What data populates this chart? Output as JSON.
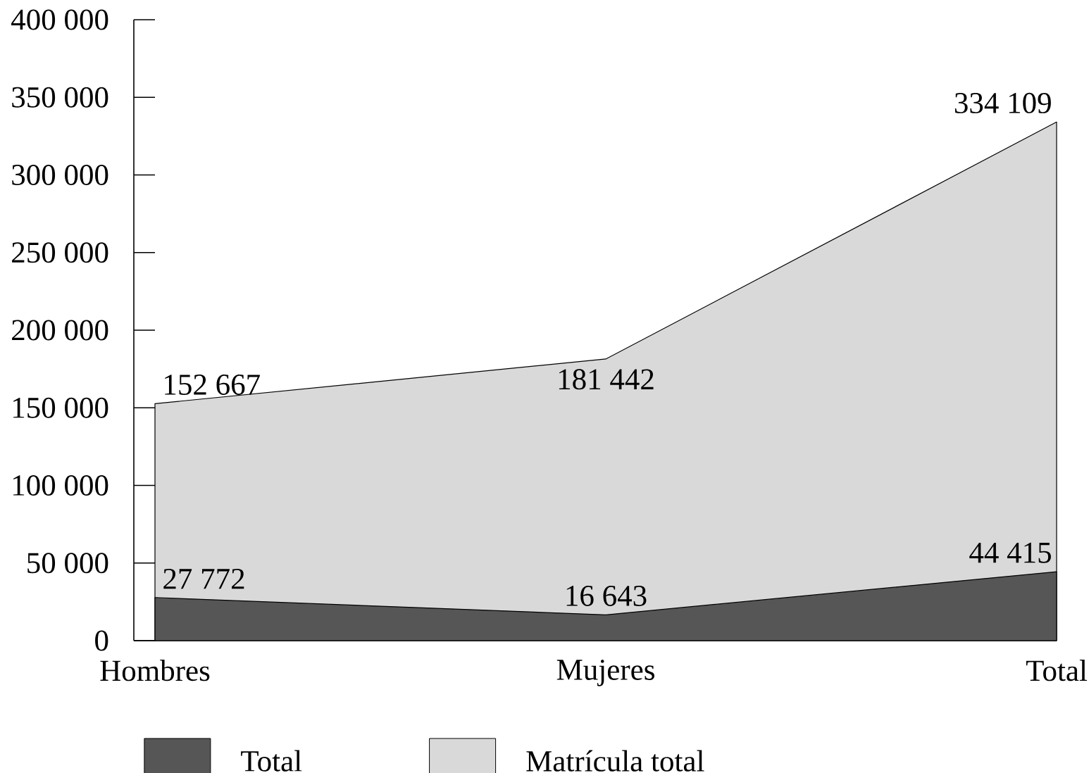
{
  "chart_data": {
    "type": "area",
    "categories": [
      "Hombres",
      "Mujeres",
      "Total"
    ],
    "series": [
      {
        "name": "Total",
        "color": "#565656",
        "values": [
          27772,
          16643,
          44415
        ],
        "value_labels": [
          "27 772",
          "16 643",
          "44 415"
        ]
      },
      {
        "name": "Matrícula total",
        "color": "#d9d9d9",
        "values": [
          152667,
          181442,
          334109
        ],
        "value_labels": [
          "152 667",
          "181 442",
          "334 109"
        ]
      }
    ],
    "ylim": [
      0,
      400000
    ],
    "yticks": [
      0,
      {
        "value": 50000,
        "label": "50 000"
      },
      {
        "value": 100000,
        "label": "100 000"
      },
      {
        "value": 150000,
        "label": "150 000"
      },
      {
        "value": 200000,
        "label": "200 000"
      },
      {
        "value": 250000,
        "label": "250 000"
      },
      {
        "value": 300000,
        "label": "300 000"
      },
      {
        "value": 350000,
        "label": "350 000"
      },
      {
        "value": 400000,
        "label": "400 000"
      }
    ],
    "legend": "bottom"
  }
}
